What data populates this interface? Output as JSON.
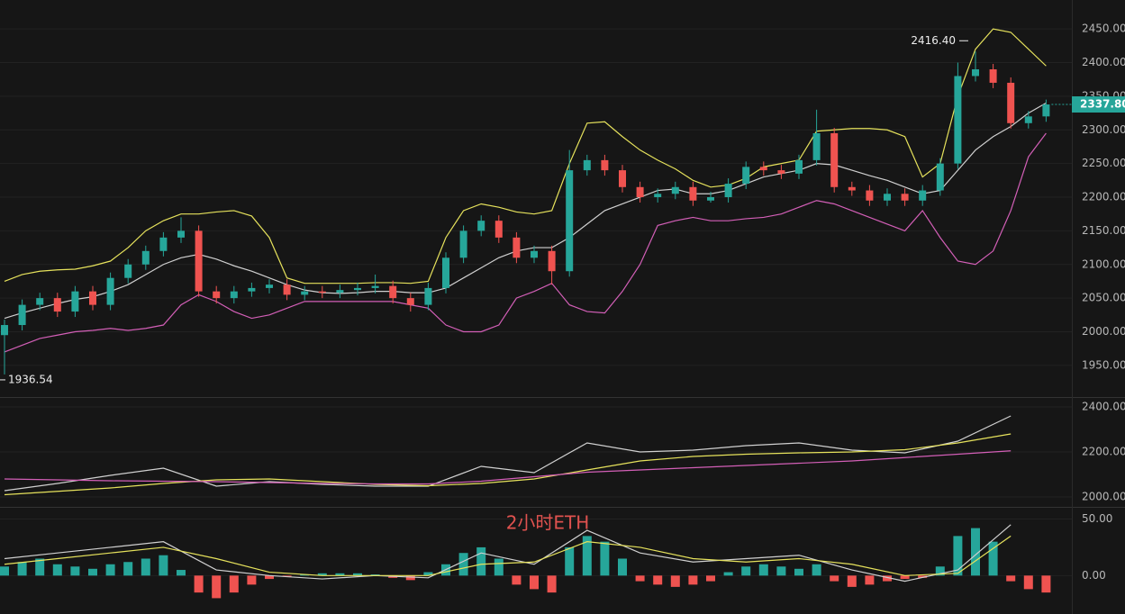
{
  "chart_data": [
    {
      "type": "candlestick",
      "grid": true,
      "up_color": "#26a69a",
      "down_color": "#ef5350",
      "open": [
        1995,
        2010,
        2040,
        2050,
        2030,
        2060,
        2040,
        2080,
        2100,
        2120,
        2140,
        2150,
        2060,
        2050,
        2060,
        2065,
        2070,
        2055,
        2060,
        2058,
        2062,
        2065,
        2068,
        2050,
        2040,
        2065,
        2110,
        2150,
        2165,
        2140,
        2110,
        2120,
        2090,
        2240,
        2255,
        2240,
        2215,
        2200,
        2205,
        2215,
        2195,
        2200,
        2220,
        2245,
        2240,
        2235,
        2255,
        2295,
        2215,
        2210,
        2195,
        2205,
        2195,
        2210,
        2250,
        2380,
        2390,
        2370,
        2310,
        2320
      ],
      "high": [
        2018,
        2048,
        2058,
        2058,
        2068,
        2068,
        2088,
        2108,
        2128,
        2148,
        2170,
        2158,
        2068,
        2068,
        2073,
        2078,
        2078,
        2068,
        2068,
        2070,
        2073,
        2085,
        2076,
        2058,
        2073,
        2118,
        2158,
        2173,
        2173,
        2148,
        2128,
        2128,
        2270,
        2263,
        2263,
        2248,
        2223,
        2213,
        2223,
        2223,
        2208,
        2228,
        2253,
        2253,
        2248,
        2263,
        2330,
        2303,
        2223,
        2218,
        2213,
        2213,
        2218,
        2258,
        2400,
        2416.4,
        2398,
        2378,
        2328,
        2345
      ],
      "low": [
        1936.54,
        2002,
        2032,
        2022,
        2022,
        2032,
        2032,
        2072,
        2092,
        2112,
        2132,
        2052,
        2042,
        2042,
        2052,
        2057,
        2047,
        2047,
        2050,
        2050,
        2054,
        2057,
        2042,
        2030,
        2032,
        2057,
        2102,
        2142,
        2132,
        2102,
        2102,
        2070,
        2082,
        2232,
        2232,
        2207,
        2192,
        2192,
        2197,
        2187,
        2192,
        2192,
        2212,
        2232,
        2227,
        2227,
        2247,
        2207,
        2202,
        2187,
        2187,
        2187,
        2187,
        2202,
        2242,
        2372,
        2362,
        2302,
        2302,
        2312
      ],
      "close": [
        2010,
        2040,
        2050,
        2030,
        2060,
        2040,
        2080,
        2100,
        2120,
        2140,
        2150,
        2060,
        2050,
        2060,
        2065,
        2070,
        2055,
        2060,
        2058,
        2062,
        2065,
        2068,
        2050,
        2040,
        2065,
        2110,
        2150,
        2165,
        2140,
        2110,
        2120,
        2090,
        2240,
        2255,
        2240,
        2215,
        2200,
        2205,
        2215,
        2195,
        2200,
        2220,
        2245,
        2240,
        2235,
        2255,
        2295,
        2215,
        2210,
        2195,
        2205,
        2195,
        2210,
        2250,
        2380,
        2390,
        2370,
        2310,
        2320,
        2337.8
      ],
      "bands": [
        {
          "color": "#e6e25c",
          "values": [
            2075,
            2085,
            2090,
            2092,
            2093,
            2098,
            2105,
            2125,
            2150,
            2165,
            2175,
            2175,
            2178,
            2180,
            2172,
            2140,
            2080,
            2072,
            2072,
            2072,
            2072,
            2073,
            2073,
            2072,
            2075,
            2140,
            2180,
            2190,
            2185,
            2178,
            2175,
            2180,
            2250,
            2310,
            2312,
            2290,
            2270,
            2255,
            2242,
            2225,
            2215,
            2218,
            2228,
            2245,
            2250,
            2255,
            2298,
            2300,
            2302,
            2302,
            2300,
            2290,
            2230,
            2250,
            2350,
            2420,
            2450,
            2445,
            2420,
            2395
          ]
        },
        {
          "color": "#d0d0d0",
          "values": [
            2020,
            2028,
            2035,
            2042,
            2048,
            2052,
            2060,
            2070,
            2085,
            2100,
            2110,
            2115,
            2108,
            2098,
            2090,
            2080,
            2070,
            2062,
            2058,
            2057,
            2058,
            2060,
            2060,
            2058,
            2058,
            2065,
            2080,
            2095,
            2110,
            2120,
            2125,
            2125,
            2140,
            2160,
            2180,
            2190,
            2200,
            2210,
            2212,
            2205,
            2205,
            2210,
            2220,
            2230,
            2235,
            2240,
            2250,
            2248,
            2240,
            2232,
            2225,
            2215,
            2205,
            2210,
            2240,
            2270,
            2290,
            2305,
            2325,
            2340
          ]
        },
        {
          "color": "#d35fb7",
          "values": [
            1970,
            1980,
            1990,
            1995,
            2000,
            2002,
            2005,
            2002,
            2005,
            2010,
            2040,
            2055,
            2045,
            2030,
            2020,
            2025,
            2035,
            2045,
            2045,
            2045,
            2045,
            2045,
            2045,
            2040,
            2035,
            2010,
            2000,
            2000,
            2010,
            2050,
            2060,
            2072,
            2040,
            2030,
            2028,
            2060,
            2100,
            2158,
            2165,
            2170,
            2165,
            2165,
            2168,
            2170,
            2175,
            2185,
            2195,
            2190,
            2180,
            2170,
            2160,
            2150,
            2180,
            2140,
            2105,
            2100,
            2120,
            2180,
            2260,
            2295
          ]
        }
      ],
      "ylim": [
        1903,
        2493
      ],
      "yticks": [
        {
          "value": 1950,
          "label": "1950.00"
        },
        {
          "value": 2000,
          "label": "2000.00"
        },
        {
          "value": 2050,
          "label": "2050.00"
        },
        {
          "value": 2100,
          "label": "2100.00"
        },
        {
          "value": 2150,
          "label": "2150.00"
        },
        {
          "value": 2200,
          "label": "2200.00"
        },
        {
          "value": 2250,
          "label": "2250.00"
        },
        {
          "value": 2300,
          "label": "2300.00"
        },
        {
          "value": 2350,
          "label": "2350.00"
        },
        {
          "value": 2400,
          "label": "2400.00"
        },
        {
          "value": 2450,
          "label": "2450.00"
        }
      ],
      "last_price": {
        "value": 2337.8,
        "label": "2337.80"
      },
      "annotations": [
        {
          "value": 2416.4,
          "label": "2416.40"
        },
        {
          "value": 1936.54,
          "label": "1936.54"
        }
      ]
    },
    {
      "type": "line",
      "grid": true,
      "x": [
        0,
        3,
        6,
        9,
        12,
        15,
        18,
        21,
        24,
        27,
        30,
        33,
        36,
        39,
        42,
        45,
        48,
        51,
        54,
        57
      ],
      "series": [
        {
          "color": "#d0d0d0",
          "values": [
            2028,
            2060,
            2096,
            2128,
            2048,
            2068,
            2056,
            2048,
            2048,
            2136,
            2108,
            2240,
            2200,
            2208,
            2228,
            2240,
            2208,
            2196,
            2248,
            2360
          ]
        },
        {
          "color": "#e6e25c",
          "values": [
            2010,
            2025,
            2040,
            2060,
            2076,
            2080,
            2068,
            2056,
            2050,
            2060,
            2080,
            2120,
            2160,
            2180,
            2190,
            2196,
            2200,
            2210,
            2240,
            2280
          ]
        },
        {
          "color": "#d35fb7",
          "values": [
            2080,
            2076,
            2072,
            2070,
            2068,
            2064,
            2060,
            2058,
            2058,
            2070,
            2090,
            2110,
            2120,
            2130,
            2140,
            2150,
            2160,
            2175,
            2190,
            2205
          ]
        }
      ],
      "ylim": [
        1956,
        2440
      ],
      "yticks": [
        {
          "value": 2000,
          "label": "2000.00"
        },
        {
          "value": 2200,
          "label": "2200.00"
        },
        {
          "value": 2400,
          "label": "2400.00"
        }
      ]
    },
    {
      "type": "macd",
      "grid": true,
      "title": "2小时ETH",
      "up_color": "#26a69a",
      "down_color": "#ef5350",
      "histogram": [
        8,
        12,
        15,
        10,
        8,
        6,
        10,
        12,
        15,
        18,
        5,
        -15,
        -20,
        -15,
        -8,
        -3,
        -1,
        1,
        2,
        2,
        2,
        1,
        -2,
        -4,
        3,
        10,
        20,
        25,
        15,
        -8,
        -12,
        -15,
        25,
        35,
        30,
        15,
        -5,
        -8,
        -10,
        -8,
        -5,
        3,
        8,
        10,
        8,
        6,
        10,
        -5,
        -10,
        -8,
        -5,
        -3,
        -2,
        8,
        35,
        42,
        30,
        -5,
        -12,
        -15
      ],
      "x": [
        0,
        3,
        6,
        9,
        12,
        15,
        18,
        21,
        24,
        27,
        30,
        33,
        36,
        39,
        42,
        45,
        48,
        51,
        54,
        57
      ],
      "series": [
        {
          "color": "#d0d0d0",
          "values": [
            15,
            20,
            25,
            30,
            5,
            0,
            -3,
            0,
            -2,
            20,
            10,
            40,
            20,
            12,
            15,
            18,
            5,
            -5,
            5,
            45
          ]
        },
        {
          "color": "#e6e25c",
          "values": [
            10,
            15,
            20,
            25,
            15,
            3,
            0,
            0,
            0,
            10,
            12,
            30,
            25,
            15,
            12,
            15,
            10,
            0,
            2,
            35
          ]
        }
      ],
      "ylim": [
        -34,
        60
      ],
      "yticks": [
        {
          "value": 0,
          "label": "0.00"
        },
        {
          "value": 50,
          "label": "50.00"
        }
      ]
    }
  ]
}
